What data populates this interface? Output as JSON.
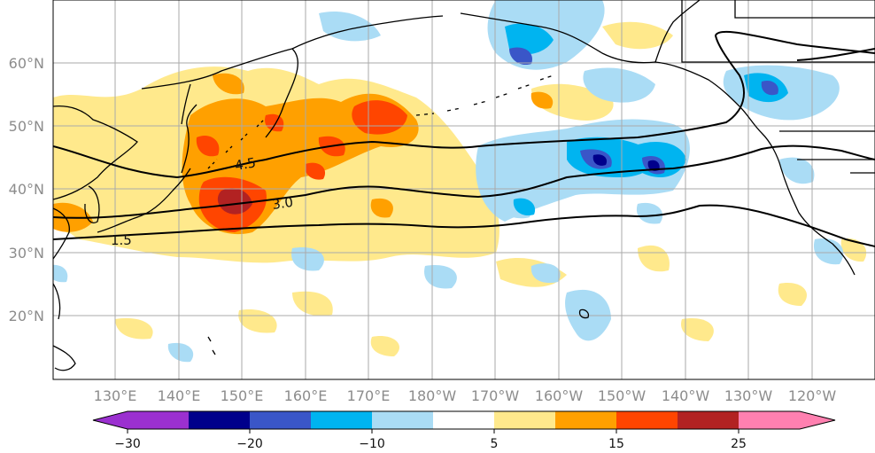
{
  "map": {
    "lat_labels": [
      "60°N",
      "50°N",
      "40°N",
      "30°N",
      "20°N"
    ],
    "lon_labels": [
      "130°E",
      "140°E",
      "150°E",
      "160°E",
      "170°E",
      "180°W",
      "170°W",
      "160°W",
      "150°W",
      "140°W",
      "130°W",
      "120°W"
    ],
    "contour_labels": [
      "4.5",
      "3.0",
      "1.5"
    ]
  },
  "colorbar": {
    "ticks": [
      "−30",
      "−20",
      "−10",
      "5",
      "15",
      "25"
    ],
    "colors": [
      "#9b30d0",
      "#00008b",
      "#3a56c8",
      "#00b4f0",
      "#aadcf5",
      "#ffffff",
      "#ffe98c",
      "#ffa000",
      "#ff4500",
      "#b22222",
      "#ff80b0"
    ]
  },
  "colors": {
    "light_blue": "#aadcf5",
    "mid_blue": "#00b4f0",
    "blue": "#3a56c8",
    "dark_blue": "#00008b",
    "light_yellow": "#ffe98c",
    "orange": "#ffa000",
    "red_orange": "#ff4500",
    "dark_red": "#b22222",
    "gridline": "#aaaaaa",
    "coast": "#000000"
  }
}
